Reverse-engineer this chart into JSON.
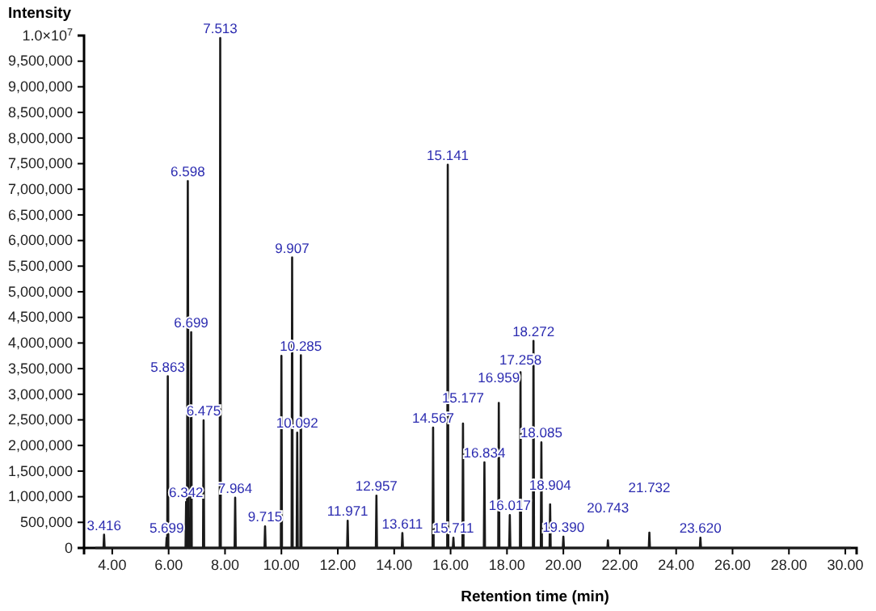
{
  "chart_data": {
    "type": "line",
    "xlabel": "Retention time (min)",
    "ylabel": "Intensity",
    "color": "#1a1a1a",
    "grid": false,
    "marker": "none",
    "line_style": "solid",
    "x": [
      3.4,
      3.69,
      3.71,
      3.73,
      5.91,
      5.93,
      5.95,
      5.97,
      5.99,
      6.6,
      6.62,
      6.65,
      6.68,
      6.71,
      6.78,
      6.8,
      6.82,
      7.22,
      7.24,
      7.26,
      7.81,
      7.83,
      7.85,
      8.34,
      8.36,
      8.38,
      9.4,
      9.42,
      9.44,
      9.98,
      10,
      10.02,
      10.36,
      10.38,
      10.4,
      10.54,
      10.56,
      10.58,
      10.67,
      10.69,
      10.71,
      12.33,
      12.35,
      12.37,
      13.35,
      13.37,
      13.39,
      14.27,
      14.29,
      14.31,
      15.36,
      15.38,
      15.4,
      15.88,
      15.9,
      15.92,
      16.08,
      16.1,
      16.12,
      16.42,
      16.44,
      16.46,
      17.18,
      17.2,
      17.22,
      17.69,
      17.71,
      17.73,
      18.08,
      18.1,
      18.12,
      18.46,
      18.48,
      18.5,
      18.92,
      18.94,
      18.96,
      19.2,
      19.22,
      19.24,
      19.51,
      19.53,
      19.55,
      19.98,
      20,
      20.02,
      21.56,
      21.58,
      21.6,
      23.03,
      23.05,
      23.07,
      24.84,
      24.86,
      24.88,
      30.2
    ],
    "values": [
      0,
      0,
      260000,
      0,
      0,
      200000,
      0,
      3350000,
      0,
      0,
      900000,
      0,
      7160000,
      0,
      0,
      4210000,
      0,
      0,
      2490000,
      0,
      0,
      9950000,
      0,
      0,
      980000,
      0,
      0,
      420000,
      0,
      0,
      3750000,
      0,
      0,
      5670000,
      0,
      0,
      2250000,
      0,
      0,
      3760000,
      0,
      0,
      530000,
      0,
      0,
      1020000,
      0,
      0,
      290000,
      0,
      0,
      2350000,
      0,
      0,
      7480000,
      0,
      0,
      200000,
      0,
      0,
      2430000,
      0,
      0,
      1670000,
      0,
      0,
      2830000,
      0,
      0,
      640000,
      0,
      0,
      3430000,
      0,
      0,
      4040000,
      0,
      0,
      2060000,
      0,
      0,
      850000,
      0,
      0,
      220000,
      0,
      0,
      150000,
      0,
      0,
      300000,
      0,
      0,
      200000,
      0,
      0
    ],
    "xlim": [
      3,
      30.4
    ],
    "xticks": [
      {
        "value": 4,
        "label": "4.00"
      },
      {
        "value": 6,
        "label": "6.00"
      },
      {
        "value": 8,
        "label": "8.00"
      },
      {
        "value": 10,
        "label": "10.00"
      },
      {
        "value": 12,
        "label": "12.00"
      },
      {
        "value": 14,
        "label": "14.00"
      },
      {
        "value": 16,
        "label": "16.00"
      },
      {
        "value": 18,
        "label": "18.00"
      },
      {
        "value": 20,
        "label": "20.00"
      },
      {
        "value": 22,
        "label": "22.00"
      },
      {
        "value": 24,
        "label": "24.00"
      },
      {
        "value": 26,
        "label": "26.00"
      },
      {
        "value": 28,
        "label": "28.00"
      },
      {
        "value": 30,
        "label": "30.00"
      }
    ],
    "ylim": [
      0,
      10000000
    ],
    "yticks": [
      0,
      {
        "value": 500000,
        "label": "500,000"
      },
      {
        "value": 1000000,
        "label": "1,000,000"
      },
      {
        "value": 1500000,
        "label": "1,500,000"
      },
      {
        "value": 2000000,
        "label": "2,000,000"
      },
      {
        "value": 2500000,
        "label": "2,500,000"
      },
      {
        "value": 3000000,
        "label": "3,000,000"
      },
      {
        "value": 3500000,
        "label": "3,500,000"
      },
      {
        "value": 4000000,
        "label": "4,000,000"
      },
      {
        "value": 4500000,
        "label": "4,500,000"
      },
      {
        "value": 5000000,
        "label": "5,000,000"
      },
      {
        "value": 5500000,
        "label": "5,500,000"
      },
      {
        "value": 6000000,
        "label": "6,000,000"
      },
      {
        "value": 6500000,
        "label": "6,500,000"
      },
      {
        "value": 7000000,
        "label": "7,000,000"
      },
      {
        "value": 7500000,
        "label": "7,500,000"
      },
      {
        "value": 8000000,
        "label": "8,000,000"
      },
      {
        "value": 8500000,
        "label": "8,500,000"
      },
      {
        "value": 9000000,
        "label": "9,000,000"
      },
      {
        "value": 9500000,
        "label": "9,500,000"
      },
      {
        "value": 10000000,
        "label": "1.0×10$^{7}$"
      }
    ],
    "annotations": [
      {
        "text": "3.416",
        "x": 3.71,
        "y": 260000
      },
      {
        "text": "5.699",
        "x": 5.93,
        "y": 200000
      },
      {
        "text": "5.863",
        "x": 5.97,
        "y": 3350000
      },
      {
        "text": "6.342",
        "x": 6.62,
        "y": 900000
      },
      {
        "text": "6.598",
        "x": 6.68,
        "y": 7160000
      },
      {
        "text": "6.699",
        "x": 6.8,
        "y": 4210000
      },
      {
        "text": "6.475",
        "x": 7.24,
        "y": 2490000
      },
      {
        "text": "7.513",
        "x": 7.83,
        "y": 9950000
      },
      {
        "text": "7.964",
        "x": 8.36,
        "y": 980000
      },
      {
        "text": "9.715",
        "x": 9.42,
        "y": 420000
      },
      {
        "text": "9.907",
        "x": 10.38,
        "y": 5670000
      },
      {
        "text": "10.092",
        "x": 10.56,
        "y": 2250000
      },
      {
        "text": "10.285",
        "x": 10.69,
        "y": 3760000
      },
      {
        "text": "11.971",
        "x": 12.35,
        "y": 530000
      },
      {
        "text": "12.957",
        "x": 13.37,
        "y": 1020000
      },
      {
        "text": "13.611",
        "x": 14.29,
        "y": 290000
      },
      {
        "text": "14.567",
        "x": 15.38,
        "y": 2350000
      },
      {
        "text": "15.141",
        "x": 15.9,
        "y": 7480000
      },
      {
        "text": "15.711",
        "x": 16.1,
        "y": 200000
      },
      {
        "text": "15.177",
        "x": 16.44,
        "y": 2430000
      },
      {
        "text": "16.834",
        "x": 17.2,
        "y": 1670000
      },
      {
        "text": "16.959",
        "x": 17.71,
        "y": 2830000
      },
      {
        "text": "16.017",
        "x": 18.1,
        "y": 640000
      },
      {
        "text": "17.258",
        "x": 18.48,
        "y": 3430000
      },
      {
        "text": "18.272",
        "x": 18.94,
        "y": 4040000
      },
      {
        "text": "18.085",
        "x": 19.22,
        "y": 2060000
      },
      {
        "text": "18.904",
        "x": 19.53,
        "y": 850000
      },
      {
        "text": "19.390",
        "x": 20,
        "y": 220000
      },
      {
        "text": "20.743",
        "x": 21.58,
        "y": 150000
      },
      {
        "text": "21.732",
        "x": 23.05,
        "y": 300000
      },
      {
        "text": "23.620",
        "x": 24.86,
        "y": 200000
      }
    ]
  }
}
